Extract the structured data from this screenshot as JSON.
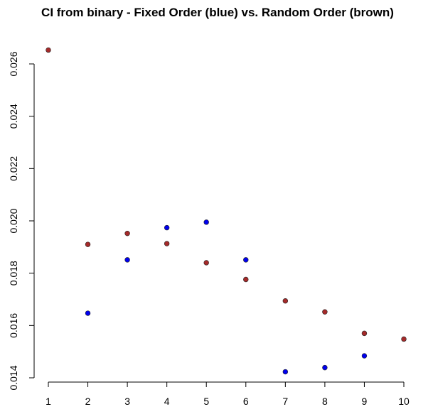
{
  "chart_data": {
    "type": "scatter",
    "title": "CI from binary - Fixed Order (blue) vs. Random Order (brown)",
    "xlabel": "",
    "ylabel": "",
    "xlim": [
      1,
      10
    ],
    "ylim": [
      0.014,
      0.0265
    ],
    "x_ticks": [
      1,
      2,
      3,
      4,
      5,
      6,
      7,
      8,
      9,
      10
    ],
    "y_ticks": [
      0.014,
      0.016,
      0.018,
      0.02,
      0.022,
      0.024,
      0.026
    ],
    "y_tick_labels": [
      "0.014",
      "0.016",
      "0.018",
      "0.020",
      "0.022",
      "0.024",
      "0.026"
    ],
    "grid": false,
    "legend": "none",
    "series": [
      {
        "color": "#0000ee",
        "x": [
          2,
          3,
          4,
          5,
          6,
          7,
          8,
          9
        ],
        "y": [
          0.01647,
          0.01851,
          0.01974,
          0.01995,
          0.01851,
          0.01423,
          0.01439,
          0.01484
        ]
      },
      {
        "color": "#a52a2a",
        "x": [
          1,
          2,
          3,
          4,
          5,
          6,
          7,
          8,
          9,
          10
        ],
        "y": [
          0.02653,
          0.0191,
          0.01952,
          0.01913,
          0.0184,
          0.01776,
          0.01694,
          0.01652,
          0.0157,
          0.01548
        ]
      }
    ]
  }
}
